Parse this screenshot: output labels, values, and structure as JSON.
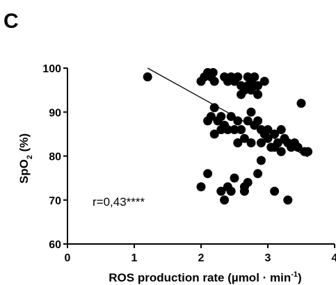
{
  "panel_label": "C",
  "chart_data": {
    "type": "scatter",
    "xlabel_main": "ROS production rate (µmol · min",
    "xlabel_sup": "-1",
    "xlabel_close": ")",
    "ylabel_main": "SpO",
    "ylabel_sub": "2",
    "ylabel_rest": " (%)",
    "xlim": [
      0,
      4
    ],
    "ylim": [
      60,
      100
    ],
    "xticks": [
      0,
      1,
      2,
      3,
      4
    ],
    "yticks": [
      60,
      70,
      80,
      90,
      100
    ],
    "xtick_labels": [
      "0",
      "1",
      "2",
      "3",
      "4"
    ],
    "ytick_labels": [
      "60",
      "70",
      "80",
      "90",
      "100"
    ],
    "grid": false,
    "annotation": "r=0,43****",
    "regression_line": {
      "x": [
        1.2,
        3.6
      ],
      "y": [
        100,
        79.8
      ]
    },
    "point_color": "#000000",
    "points": [
      [
        1.2,
        98
      ],
      [
        2.0,
        97
      ],
      [
        2.05,
        98
      ],
      [
        2.1,
        99
      ],
      [
        2.15,
        98
      ],
      [
        2.18,
        99
      ],
      [
        2.2,
        97
      ],
      [
        2.35,
        98
      ],
      [
        2.4,
        97
      ],
      [
        2.45,
        98
      ],
      [
        2.5,
        97
      ],
      [
        2.55,
        98
      ],
      [
        2.7,
        98
      ],
      [
        2.75,
        97
      ],
      [
        2.8,
        98
      ],
      [
        2.85,
        96
      ],
      [
        2.95,
        97
      ],
      [
        2.6,
        96
      ],
      [
        2.65,
        95
      ],
      [
        2.7,
        96
      ],
      [
        2.75,
        95
      ],
      [
        2.8,
        96
      ],
      [
        2.6,
        94
      ],
      [
        2.85,
        94
      ],
      [
        3.5,
        92
      ],
      [
        2.2,
        91
      ],
      [
        2.15,
        89
      ],
      [
        2.25,
        88
      ],
      [
        2.1,
        88
      ],
      [
        2.3,
        89
      ],
      [
        2.45,
        89
      ],
      [
        2.55,
        88
      ],
      [
        2.35,
        87
      ],
      [
        2.6,
        86
      ],
      [
        2.7,
        88
      ],
      [
        2.75,
        90
      ],
      [
        2.8,
        87
      ],
      [
        2.85,
        88
      ],
      [
        2.4,
        86
      ],
      [
        2.5,
        86
      ],
      [
        2.3,
        86
      ],
      [
        2.2,
        85
      ],
      [
        2.55,
        83
      ],
      [
        2.65,
        84
      ],
      [
        2.75,
        83
      ],
      [
        2.9,
        86
      ],
      [
        2.95,
        85
      ],
      [
        2.9,
        83
      ],
      [
        3.0,
        84
      ],
      [
        3.05,
        82
      ],
      [
        3.1,
        85
      ],
      [
        3.15,
        83
      ],
      [
        3.2,
        86
      ],
      [
        3.25,
        84
      ],
      [
        3.3,
        83
      ],
      [
        3.35,
        82
      ],
      [
        3.4,
        83
      ],
      [
        3.0,
        86
      ],
      [
        3.1,
        82
      ],
      [
        3.2,
        81
      ],
      [
        3.45,
        82
      ],
      [
        3.55,
        81
      ],
      [
        3.6,
        81
      ],
      [
        2.9,
        79
      ],
      [
        2.0,
        73
      ],
      [
        2.1,
        76
      ],
      [
        2.4,
        73
      ],
      [
        2.45,
        72
      ],
      [
        2.5,
        75
      ],
      [
        2.65,
        73
      ],
      [
        2.7,
        74
      ],
      [
        2.35,
        70
      ],
      [
        2.65,
        72
      ],
      [
        2.85,
        76
      ],
      [
        3.1,
        72
      ],
      [
        3.3,
        70
      ],
      [
        2.3,
        72
      ]
    ]
  }
}
